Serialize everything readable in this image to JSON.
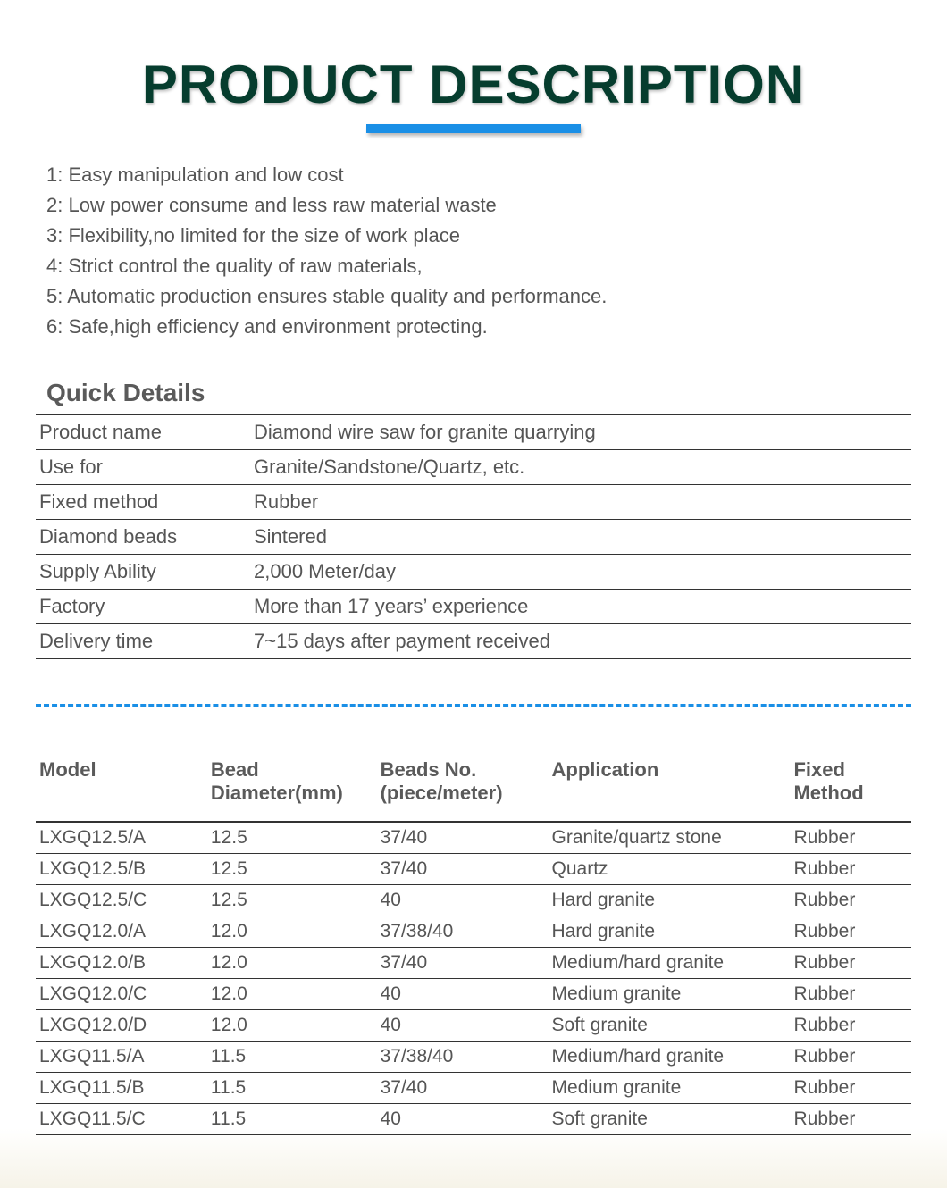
{
  "title": "PRODUCT DESCRIPTION",
  "title_color": "#063d2e",
  "underline_color": "#1a8fe6",
  "text_color": "#555555",
  "border_color": "#333333",
  "background_color": "#ffffff",
  "features": [
    "1: Easy manipulation and low cost",
    "2: Low power consume and less raw material waste",
    "3: Flexibility,no limited for the size of work place",
    "4: Strict control the quality of raw materials,",
    "5: Automatic production ensures stable quality and performance.",
    "6: Safe,high efficiency and environment protecting."
  ],
  "quick_details": {
    "heading": "Quick Details",
    "rows": [
      {
        "label": "Product name",
        "value": "Diamond wire saw for granite quarrying"
      },
      {
        "label": "Use for",
        "value": "Granite/Sandstone/Quartz, etc."
      },
      {
        "label": "Fixed method",
        "value": "Rubber"
      },
      {
        "label": "Diamond beads",
        "value": "Sintered"
      },
      {
        "label": "Supply Ability",
        "value": "2,000 Meter/day"
      },
      {
        "label": "Factory",
        "value": "More than 17 years’  experience"
      },
      {
        "label": "Delivery time",
        "value": "7~15 days after payment received"
      }
    ]
  },
  "spec_table": {
    "columns": [
      "Model",
      "Bead Diameter(mm)",
      "Beads No. (piece/meter)",
      "Application",
      "Fixed Method"
    ],
    "rows": [
      [
        "LXGQ12.5/A",
        "12.5",
        "37/40",
        "Granite/quartz stone",
        "Rubber"
      ],
      [
        "LXGQ12.5/B",
        "12.5",
        "37/40",
        "Quartz",
        "Rubber"
      ],
      [
        "LXGQ12.5/C",
        "12.5",
        "40",
        "Hard granite",
        "Rubber"
      ],
      [
        "LXGQ12.0/A",
        "12.0",
        "37/38/40",
        "Hard granite",
        "Rubber"
      ],
      [
        "LXGQ12.0/B",
        "12.0",
        "37/40",
        "Medium/hard granite",
        "Rubber"
      ],
      [
        "LXGQ12.0/C",
        "12.0",
        "40",
        "Medium granite",
        "Rubber"
      ],
      [
        "LXGQ12.0/D",
        "12.0",
        "40",
        "Soft granite",
        "Rubber"
      ],
      [
        "LXGQ11.5/A",
        "11.5",
        "37/38/40",
        "Medium/hard granite",
        "Rubber"
      ],
      [
        "LXGQ11.5/B",
        "11.5",
        "37/40",
        "Medium granite",
        "Rubber"
      ],
      [
        "LXGQ11.5/C",
        "11.5",
        "40",
        "Soft granite",
        "Rubber"
      ]
    ]
  }
}
